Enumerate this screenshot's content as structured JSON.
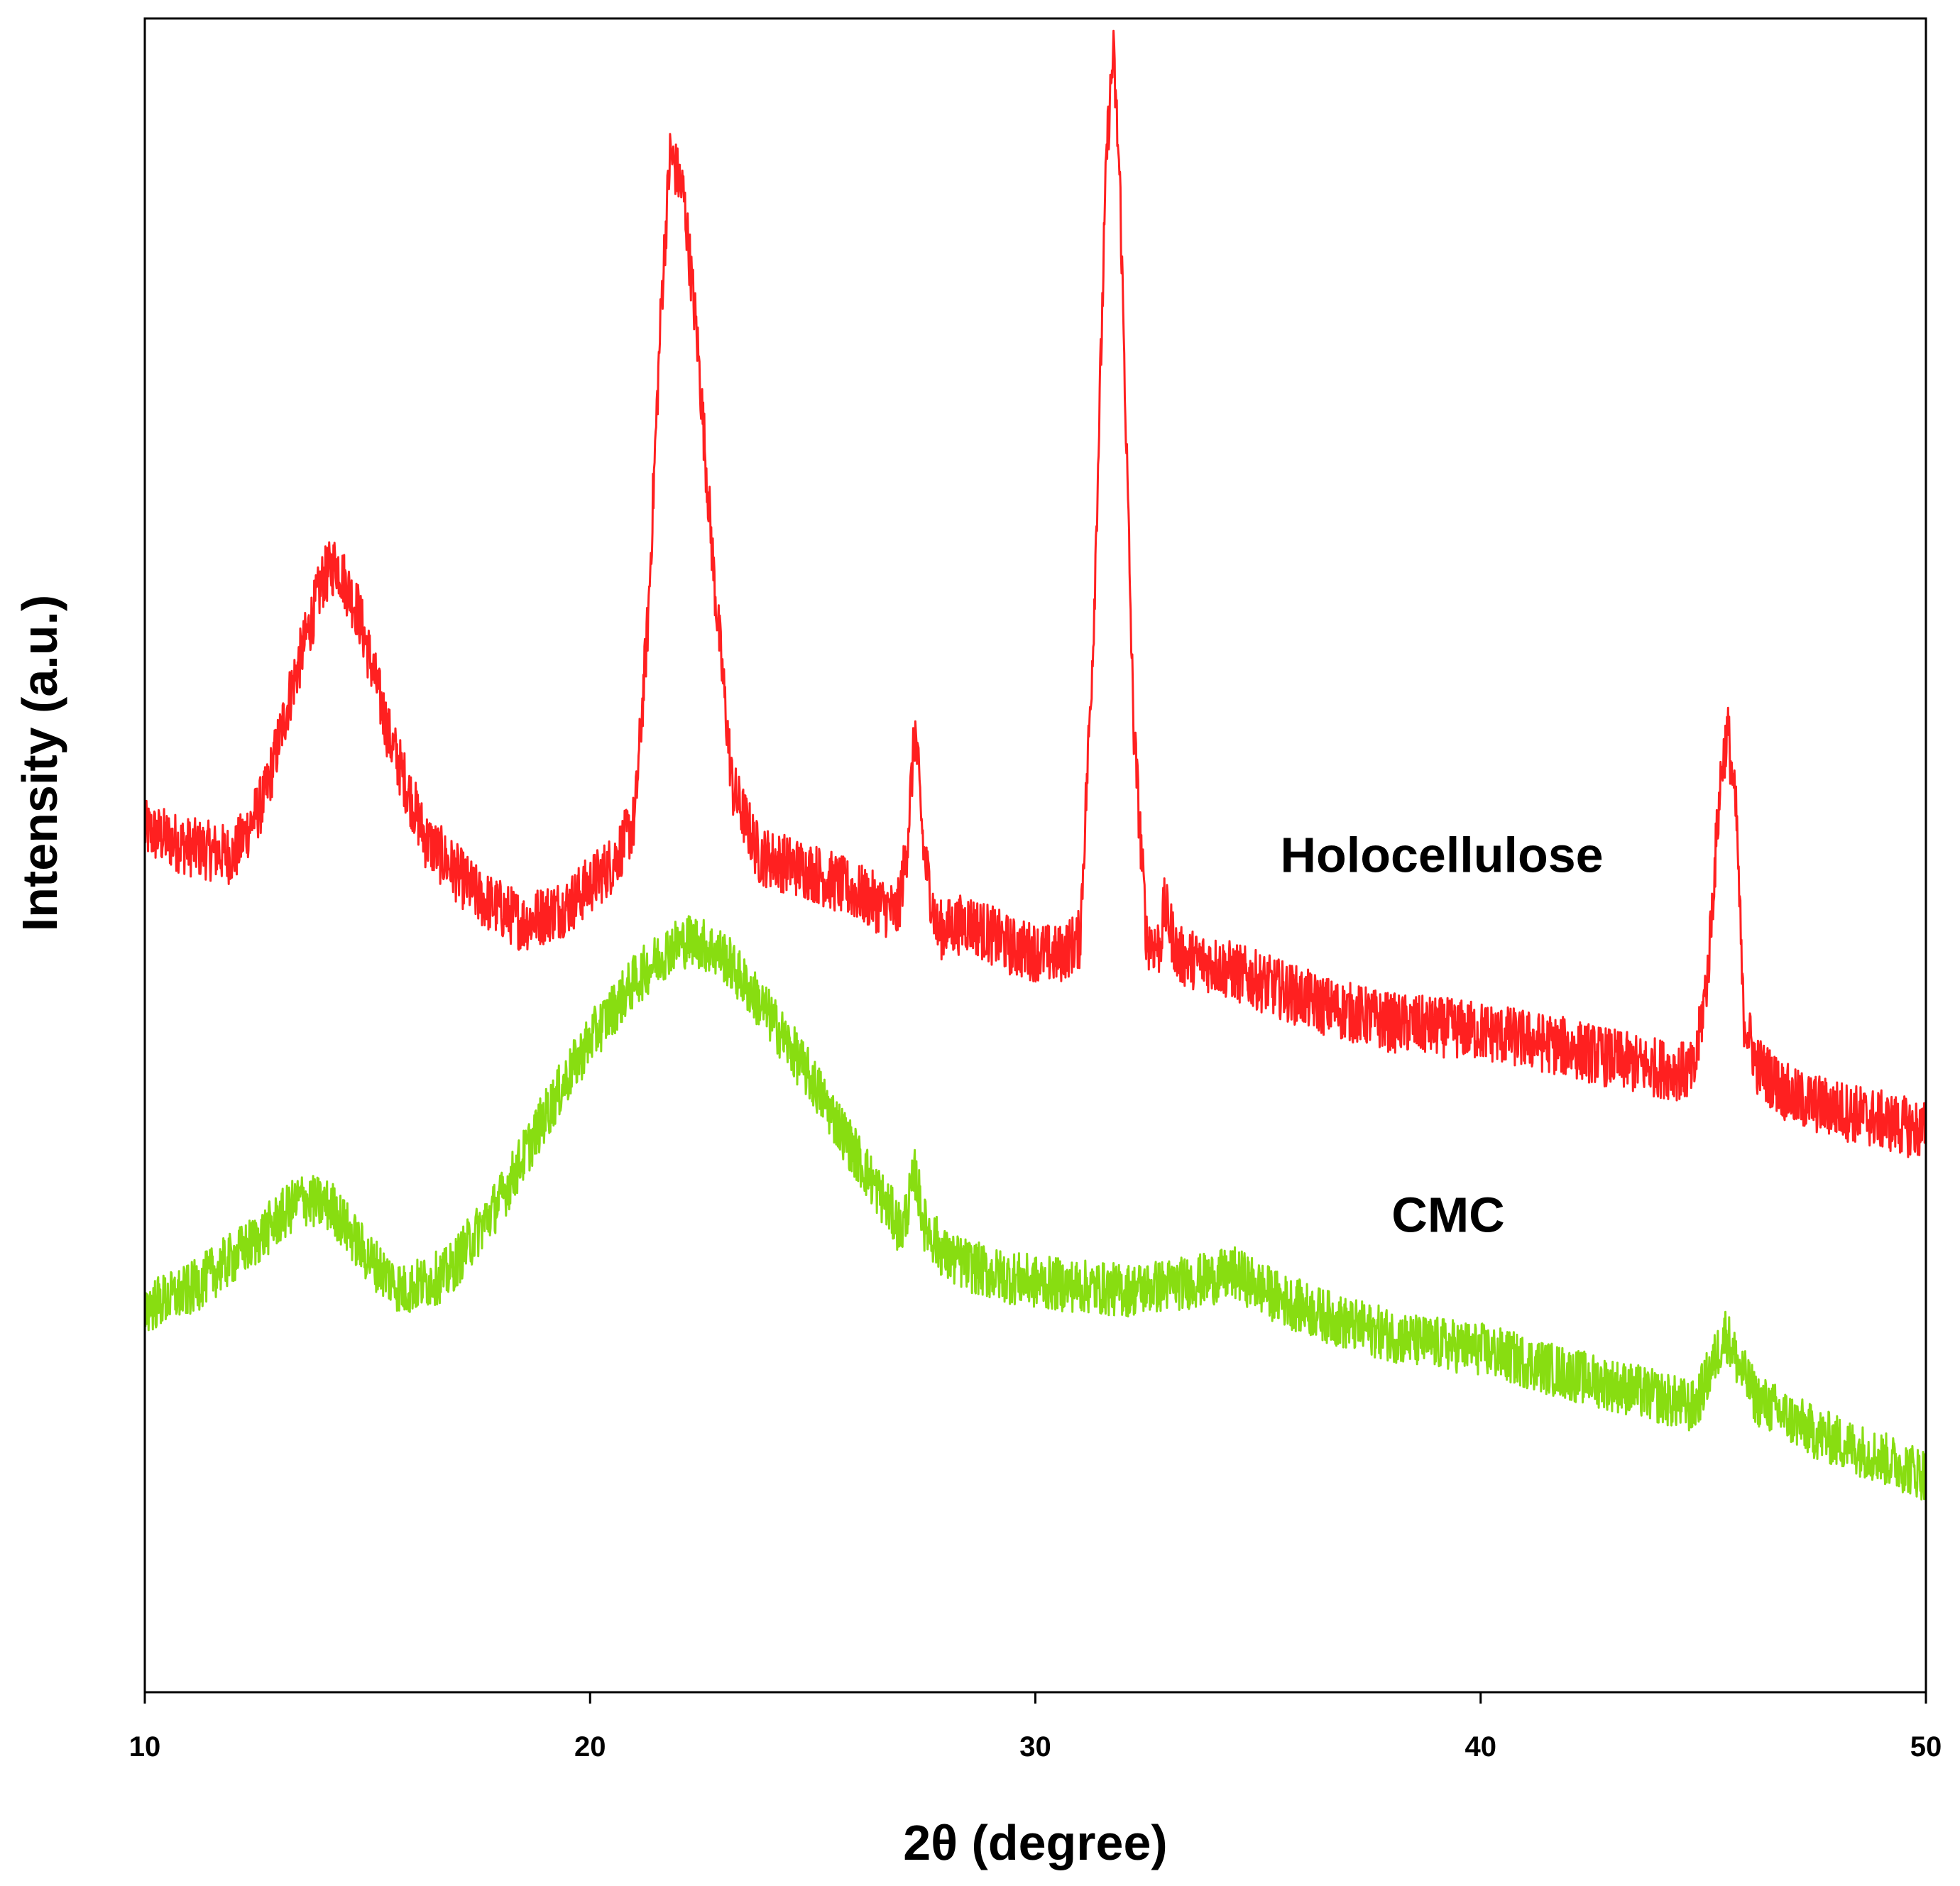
{
  "chart_data": {
    "type": "line",
    "title": "",
    "xlabel": "2θ (degree)",
    "ylabel": "Intensity (a.u.)",
    "xlim": [
      10,
      50
    ],
    "ylim": [
      0,
      100
    ],
    "xticks": [
      "10",
      "20",
      "30",
      "40",
      "50"
    ],
    "yticks": [],
    "grid": false,
    "series": [
      {
        "name": "Holocellulose",
        "color": "#ff2020",
        "noise": 1.8,
        "points": [
          [
            10,
            51.5
          ],
          [
            11,
            50.5
          ],
          [
            12,
            50.0
          ],
          [
            12.7,
            53.5
          ],
          [
            13.3,
            60.0
          ],
          [
            14.0,
            66.5
          ],
          [
            14.3,
            67.5
          ],
          [
            14.8,
            64.5
          ],
          [
            15.5,
            57.0
          ],
          [
            16.3,
            51.0
          ],
          [
            17.5,
            47.5
          ],
          [
            18.5,
            46.0
          ],
          [
            19.5,
            47.0
          ],
          [
            20.5,
            49.5
          ],
          [
            21.0,
            52.0
          ],
          [
            21.3,
            64.0
          ],
          [
            21.6,
            83.0
          ],
          [
            21.8,
            92.0
          ],
          [
            22.1,
            89.5
          ],
          [
            22.4,
            81.0
          ],
          [
            22.8,
            66.0
          ],
          [
            23.2,
            54.0
          ],
          [
            23.8,
            50.0
          ],
          [
            25.0,
            49.0
          ],
          [
            26.2,
            47.5
          ],
          [
            26.9,
            46.5
          ],
          [
            27.1,
            50.0
          ],
          [
            27.3,
            57.5
          ],
          [
            27.5,
            50.0
          ],
          [
            27.8,
            45.5
          ],
          [
            28.5,
            46.0
          ],
          [
            29.5,
            44.5
          ],
          [
            30.5,
            44.0
          ],
          [
            31.0,
            45.0
          ],
          [
            31.3,
            63.0
          ],
          [
            31.6,
            92.0
          ],
          [
            31.75,
            98.0
          ],
          [
            31.9,
            90.0
          ],
          [
            32.2,
            58.0
          ],
          [
            32.5,
            45.0
          ],
          [
            32.8,
            44.5
          ],
          [
            32.9,
            47.0
          ],
          [
            33.2,
            44.0
          ],
          [
            34.0,
            43.5
          ],
          [
            35.0,
            42.5
          ],
          [
            36.5,
            41.0
          ],
          [
            38.0,
            40.0
          ],
          [
            40.0,
            39.5
          ],
          [
            42.0,
            38.5
          ],
          [
            43.5,
            37.5
          ],
          [
            44.8,
            37.0
          ],
          [
            45.1,
            43.0
          ],
          [
            45.4,
            55.0
          ],
          [
            45.55,
            57.5
          ],
          [
            45.75,
            52.0
          ],
          [
            45.9,
            40.5
          ],
          [
            46.2,
            37.5
          ],
          [
            47.0,
            35.5
          ],
          [
            48.5,
            34.5
          ],
          [
            50.0,
            33.5
          ]
        ]
      },
      {
        "name": "CMC",
        "color": "#88dd11",
        "noise": 1.6,
        "points": [
          [
            10,
            23.0
          ],
          [
            11,
            24.0
          ],
          [
            12.5,
            27.0
          ],
          [
            13.5,
            29.5
          ],
          [
            14.2,
            29.0
          ],
          [
            15.0,
            26.0
          ],
          [
            15.8,
            24.0
          ],
          [
            16.8,
            25.0
          ],
          [
            18.0,
            29.5
          ],
          [
            19.0,
            34.5
          ],
          [
            20.0,
            39.0
          ],
          [
            21.0,
            42.5
          ],
          [
            21.8,
            44.5
          ],
          [
            22.3,
            45.0
          ],
          [
            23.0,
            44.0
          ],
          [
            24.0,
            40.5
          ],
          [
            25.0,
            36.5
          ],
          [
            26.0,
            32.0
          ],
          [
            26.8,
            28.5
          ],
          [
            27.0,
            27.5
          ],
          [
            27.3,
            31.0
          ],
          [
            27.5,
            28.0
          ],
          [
            28.0,
            26.0
          ],
          [
            29.0,
            25.0
          ],
          [
            30.0,
            24.5
          ],
          [
            32.0,
            24.0
          ],
          [
            33.5,
            24.5
          ],
          [
            34.5,
            25.0
          ],
          [
            35.5,
            23.5
          ],
          [
            37.0,
            22.0
          ],
          [
            38.5,
            21.0
          ],
          [
            40.0,
            20.5
          ],
          [
            42.0,
            19.0
          ],
          [
            43.5,
            18.0
          ],
          [
            44.8,
            17.0
          ],
          [
            45.2,
            19.5
          ],
          [
            45.5,
            21.5
          ],
          [
            45.8,
            19.5
          ],
          [
            46.2,
            17.5
          ],
          [
            47.5,
            15.5
          ],
          [
            49.0,
            14.0
          ],
          [
            50.0,
            13.0
          ]
        ]
      }
    ],
    "annotations": [
      {
        "text": "Holocellulose",
        "x": 35.5,
        "y": 49.0
      },
      {
        "text": "CMC",
        "x": 38.0,
        "y": 27.5
      }
    ]
  }
}
